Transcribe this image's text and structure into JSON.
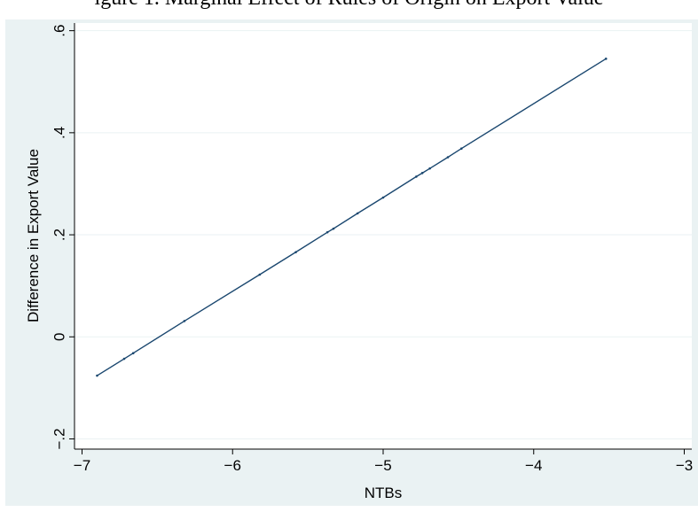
{
  "figure": {
    "caption": "igure 1. Marginal Effect of Rules of Origin on Export Value"
  },
  "chart_data": {
    "type": "line",
    "title": "",
    "xlabel": "NTBs",
    "ylabel": "Difference in Export Value",
    "xlim": [
      -7.05,
      -2.95
    ],
    "ylim": [
      -0.22,
      0.615
    ],
    "x_ticks": [
      {
        "value": -7,
        "label": "−7"
      },
      {
        "value": -6,
        "label": "−6"
      },
      {
        "value": -5,
        "label": "−5"
      },
      {
        "value": -4,
        "label": "−4"
      },
      {
        "value": -3,
        "label": "−3"
      }
    ],
    "y_ticks": [
      {
        "value": -0.2,
        "label": "−.2"
      },
      {
        "value": 0,
        "label": "0"
      },
      {
        "value": 0.2,
        "label": ".2"
      },
      {
        "value": 0.4,
        "label": ".4"
      },
      {
        "value": 0.6,
        "label": ".6"
      }
    ],
    "grid": true,
    "series": [
      {
        "color": "#1a476f",
        "x": [
          -6.9,
          -6.72,
          -6.66,
          -6.32,
          -5.82,
          -5.58,
          -5.37,
          -5.33,
          -5.17,
          -5.0,
          -4.78,
          -4.74,
          -4.69,
          -4.57,
          -4.48,
          -3.52
        ],
        "y": [
          -0.076,
          -0.043,
          -0.032,
          0.031,
          0.122,
          0.166,
          0.205,
          0.212,
          0.242,
          0.273,
          0.314,
          0.321,
          0.33,
          0.352,
          0.369,
          0.545
        ]
      }
    ],
    "colors": {
      "outer_background": "#eaf2f3",
      "plot_background": "#ffffff",
      "grid": "#eaf2f3",
      "axis": "#000000"
    }
  }
}
